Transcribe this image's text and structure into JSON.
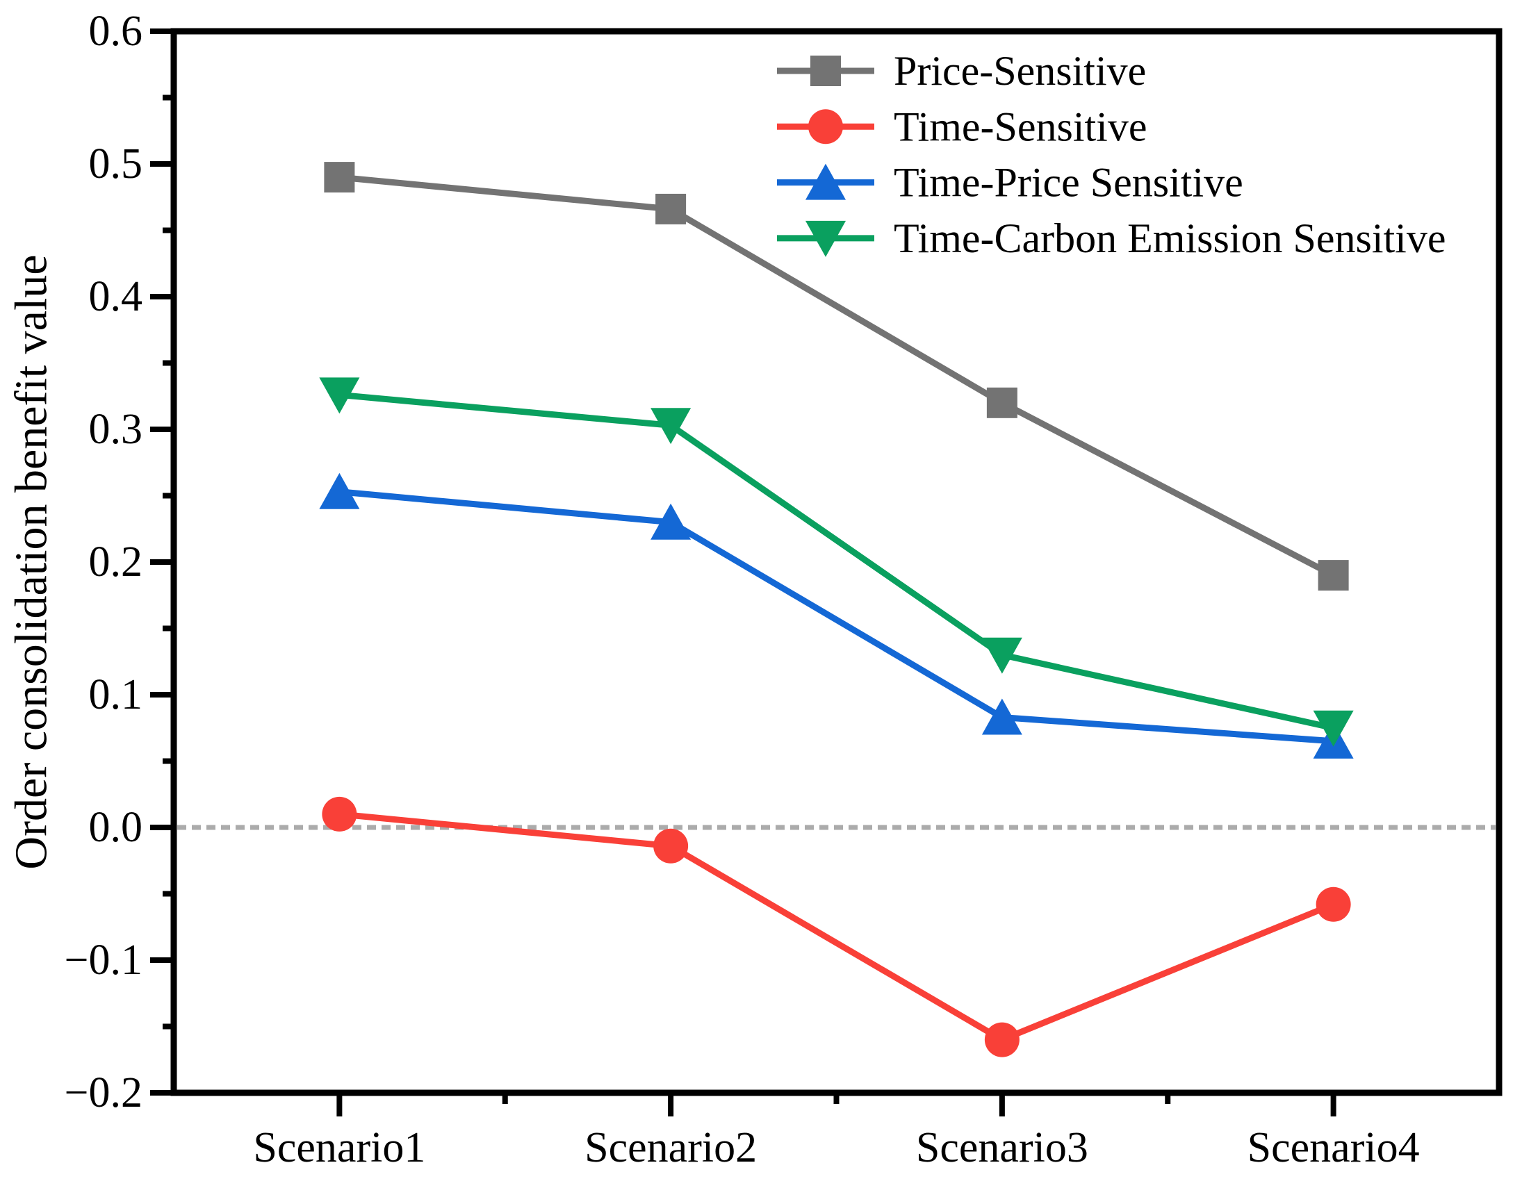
{
  "chart_data": {
    "type": "line",
    "title": "",
    "categories": [
      "Scenario1",
      "Scenario2",
      "Scenario3",
      "Scenario4"
    ],
    "series": [
      {
        "name": "Price-Sensitive",
        "color": "#737373",
        "marker": "square",
        "values": [
          0.49,
          0.466,
          0.32,
          0.19
        ]
      },
      {
        "name": "Time-Sensitive",
        "color": "#F94038",
        "marker": "circle",
        "values": [
          0.01,
          -0.014,
          -0.16,
          -0.058
        ]
      },
      {
        "name": "Time-Price Sensitive",
        "color": "#1468D5",
        "marker": "triangle-up",
        "values": [
          0.253,
          0.23,
          0.083,
          0.065
        ]
      },
      {
        "name": "Time-Carbon Emission Sensitive",
        "color": "#0AA05F",
        "marker": "triangle-down",
        "values": [
          0.326,
          0.303,
          0.13,
          0.075
        ]
      }
    ],
    "xlabel": "",
    "ylabel": "Order consolidation benefit value",
    "ylim": [
      -0.2,
      0.6
    ],
    "y_major_step": 0.1,
    "y_minor_step": 0.05,
    "y_tick_labels": [
      "0.6",
      "0.5",
      "0.4",
      "0.3",
      "0.2",
      "0.1",
      "0.0",
      "−0.1",
      "−0.2"
    ],
    "reference_line": {
      "y": 0.0,
      "style": "dashed",
      "color": "#ABABAB"
    },
    "legend_position": "top-inside",
    "grid": false,
    "frame_color": "#000000",
    "background": "#FFFFFF"
  }
}
